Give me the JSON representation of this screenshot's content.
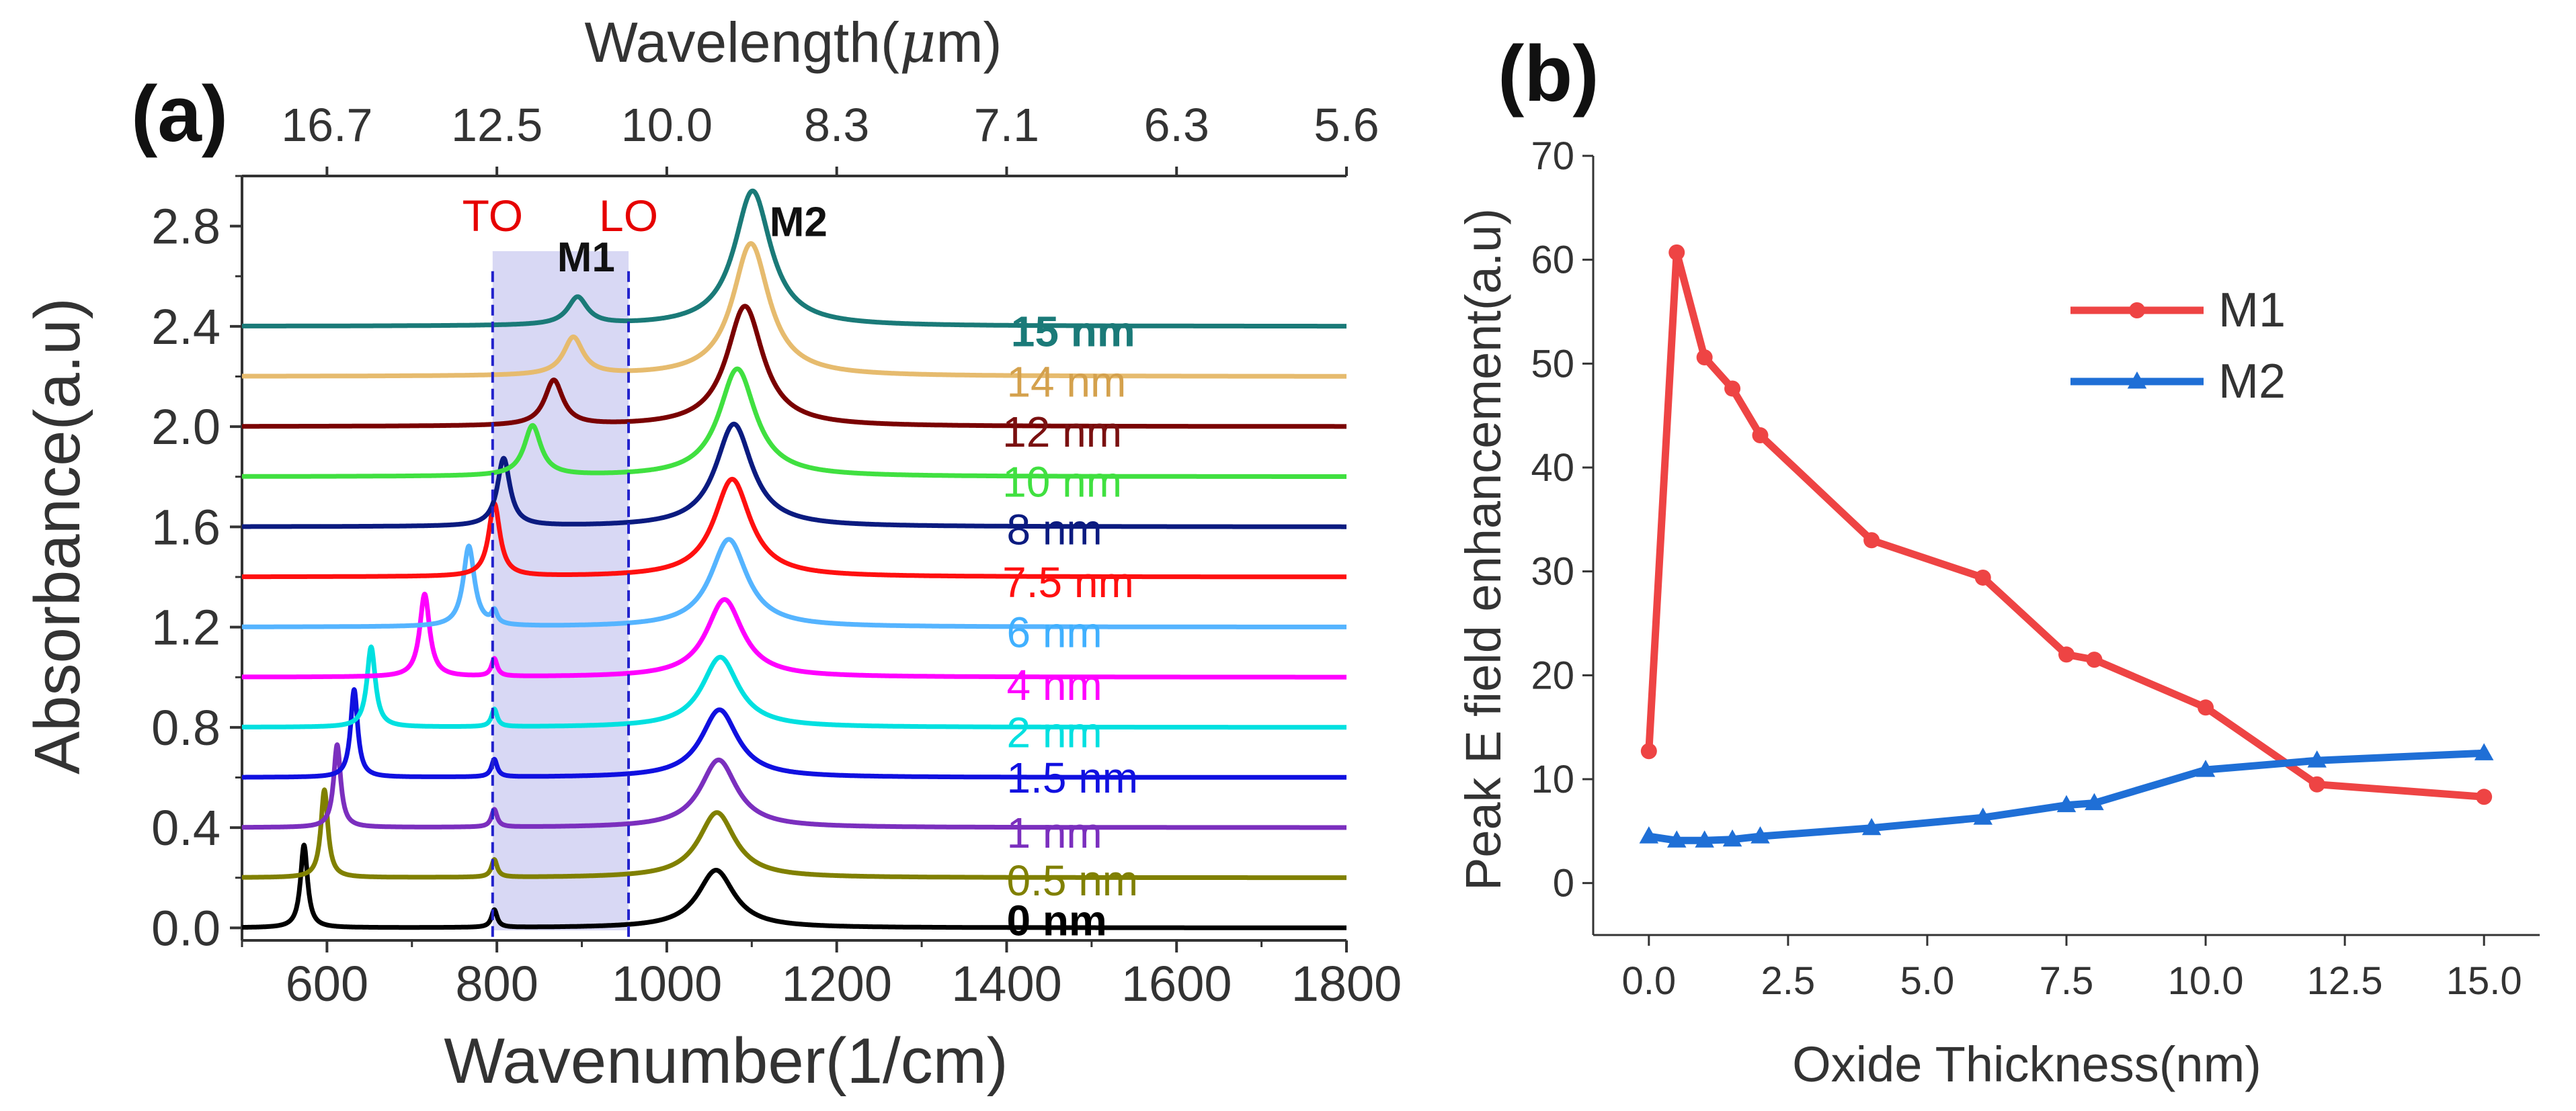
{
  "figure_style": {
    "axis_color": "#333333",
    "text_color": "#333333"
  },
  "chart_data": [
    {
      "panel_label": "(a)",
      "type": "line",
      "xlabel": "Wavenumber(1/cm)",
      "ylabel": "Absorbance(a.u)",
      "xlim": [
        500,
        1800
      ],
      "ylim": [
        -0.05,
        3.0
      ],
      "xticks": [
        600,
        800,
        1000,
        1200,
        1400,
        1600,
        1800
      ],
      "xtick_labels": [
        "600",
        "800",
        "1000",
        "1200",
        "1400",
        "1600",
        "1800"
      ],
      "yticks": [
        0.0,
        0.4,
        0.8,
        1.2,
        1.6,
        2.0,
        2.4,
        2.8
      ],
      "ytick_labels": [
        "0.0",
        "0.4",
        "0.8",
        "1.2",
        "1.6",
        "2.0",
        "2.4",
        "2.8"
      ],
      "top_axis": {
        "label_prefix": "Wavelength(",
        "label_symbol": "μ",
        "label_suffix": "m)",
        "ticks_wavenumber": [
          600,
          800,
          1000,
          1200,
          1400,
          1600,
          1800
        ],
        "tick_labels": [
          "16.7",
          "12.5",
          "10.0",
          "8.3",
          "7.1",
          "6.3",
          "5.6"
        ]
      },
      "shaded_band": {
        "x": [
          795,
          955
        ],
        "color": "#c8c8f0"
      },
      "vlines": [
        {
          "x": 795,
          "label": "TO",
          "color": "#2222cc",
          "label_color": "#e60000"
        },
        {
          "x": 955,
          "label": "LO",
          "color": "#2222cc",
          "label_color": "#e60000"
        }
      ],
      "annotations": [
        {
          "text": "M1",
          "x": 905,
          "y": 2.62
        },
        {
          "text": "M2",
          "x": 1155,
          "y": 2.76
        }
      ],
      "series": [
        {
          "name": "0 nm",
          "color": "#000000",
          "offset": 0.0,
          "m1_x": 573,
          "m1_h": 0.33,
          "m1_w": 5,
          "m2_x": 1058,
          "m2_h": 0.23,
          "m2_w": 26,
          "to_h": 0.07
        },
        {
          "name": "0.5 nm",
          "color": "#808000",
          "offset": 0.2,
          "m1_x": 597,
          "m1_h": 0.35,
          "m1_w": 5,
          "m2_x": 1059,
          "m2_h": 0.26,
          "m2_w": 26,
          "to_h": 0.07
        },
        {
          "name": "1 nm",
          "color": "#7b2fbe",
          "offset": 0.4,
          "m1_x": 612,
          "m1_h": 0.33,
          "m1_w": 5,
          "m2_x": 1061,
          "m2_h": 0.27,
          "m2_w": 26,
          "to_h": 0.07
        },
        {
          "name": "1.5 nm",
          "color": "#1010e0",
          "offset": 0.6,
          "m1_x": 632,
          "m1_h": 0.35,
          "m1_w": 5,
          "m2_x": 1062,
          "m2_h": 0.27,
          "m2_w": 26,
          "to_h": 0.07
        },
        {
          "name": "2 nm",
          "color": "#00e0e0",
          "offset": 0.8,
          "m1_x": 652,
          "m1_h": 0.32,
          "m1_w": 6,
          "m2_x": 1063,
          "m2_h": 0.28,
          "m2_w": 26,
          "to_h": 0.07
        },
        {
          "name": "4 nm",
          "color": "#ff00ff",
          "offset": 1.0,
          "m1_x": 715,
          "m1_h": 0.33,
          "m1_w": 7,
          "m2_x": 1068,
          "m2_h": 0.31,
          "m2_w": 26,
          "to_h": 0.07
        },
        {
          "name": "6 nm",
          "color": "#55b4ff",
          "offset": 1.2,
          "m1_x": 767,
          "m1_h": 0.32,
          "m1_w": 8,
          "m2_x": 1073,
          "m2_h": 0.35,
          "m2_w": 26,
          "to_h": 0.05
        },
        {
          "name": "7.5 nm",
          "color": "#ff1010",
          "offset": 1.4,
          "m1_x": 797,
          "m1_h": 0.29,
          "m1_w": 8,
          "m2_x": 1077,
          "m2_h": 0.39,
          "m2_w": 26,
          "to_h": 0.0
        },
        {
          "name": "8 nm",
          "color": "#0b1b80",
          "offset": 1.6,
          "m1_x": 808,
          "m1_h": 0.27,
          "m1_w": 9,
          "m2_x": 1079,
          "m2_h": 0.41,
          "m2_w": 26,
          "to_h": 0.0
        },
        {
          "name": "10 nm",
          "color": "#40e040",
          "offset": 1.8,
          "m1_x": 842,
          "m1_h": 0.2,
          "m1_w": 12,
          "m2_x": 1083,
          "m2_h": 0.43,
          "m2_w": 26,
          "to_h": 0.0
        },
        {
          "name": "12 nm",
          "color": "#7a0000",
          "offset": 2.0,
          "m1_x": 867,
          "m1_h": 0.18,
          "m1_w": 13,
          "m2_x": 1092,
          "m2_h": 0.48,
          "m2_w": 26,
          "to_h": 0.0
        },
        {
          "name": "14 nm",
          "color": "#e6bb6e",
          "offset": 2.2,
          "m1_x": 890,
          "m1_h": 0.15,
          "m1_w": 14,
          "m2_x": 1099,
          "m2_h": 0.53,
          "m2_w": 26,
          "to_h": 0.0
        },
        {
          "name": "15 nm",
          "color": "#1a7a78",
          "offset": 2.4,
          "m1_x": 895,
          "m1_h": 0.11,
          "m1_w": 14,
          "m2_x": 1101,
          "m2_h": 0.54,
          "m2_w": 26,
          "to_h": 0.0
        }
      ],
      "legend_labels": [
        {
          "text": "15 nm",
          "color": "#1a7a78",
          "bold": true,
          "x": 1405,
          "y": 2.32
        },
        {
          "text": "14 nm",
          "color": "#d4a14d",
          "bold": false,
          "x": 1400,
          "y": 2.12
        },
        {
          "text": "12 nm",
          "color": "#7a1010",
          "bold": false,
          "x": 1395,
          "y": 1.92
        },
        {
          "text": "10 nm",
          "color": "#40e040",
          "bold": false,
          "x": 1395,
          "y": 1.72
        },
        {
          "text": "8 nm",
          "color": "#0b1b80",
          "bold": false,
          "x": 1400,
          "y": 1.53
        },
        {
          "text": "7.5 nm",
          "color": "#ff1010",
          "bold": false,
          "x": 1395,
          "y": 1.32
        },
        {
          "text": "6 nm",
          "color": "#40b0ff",
          "bold": false,
          "x": 1400,
          "y": 1.12
        },
        {
          "text": "4 nm",
          "color": "#ff00ff",
          "bold": false,
          "x": 1400,
          "y": 0.91
        },
        {
          "text": "2 nm",
          "color": "#00e0e0",
          "bold": false,
          "x": 1400,
          "y": 0.72
        },
        {
          "text": "1.5 nm",
          "color": "#1010e0",
          "bold": false,
          "x": 1400,
          "y": 0.54
        },
        {
          "text": "1 nm",
          "color": "#7b2fbe",
          "bold": false,
          "x": 1400,
          "y": 0.32
        },
        {
          "text": "0.5 nm",
          "color": "#808000",
          "bold": false,
          "x": 1400,
          "y": 0.13
        },
        {
          "text": "0 nm",
          "color": "#000000",
          "bold": true,
          "x": 1400,
          "y": -0.03
        }
      ]
    },
    {
      "panel_label": "(b)",
      "type": "line",
      "xlabel": "Oxide Thickness(nm)",
      "ylabel": "Peak E field enhancement(a.u)",
      "xlim": [
        -1,
        16
      ],
      "ylim": [
        -5,
        70
      ],
      "xticks": [
        0,
        2.5,
        5,
        7.5,
        10,
        12.5,
        15
      ],
      "xtick_labels": [
        "0.0",
        "2.5",
        "5.0",
        "7.5",
        "10.0",
        "12.5",
        "15.0"
      ],
      "yticks": [
        0,
        10,
        20,
        30,
        40,
        50,
        60,
        70
      ],
      "ytick_labels": [
        "0",
        "10",
        "20",
        "30",
        "40",
        "50",
        "60",
        "70"
      ],
      "series": [
        {
          "name": "M1",
          "color": "#ee4444",
          "marker": "circle",
          "x": [
            0,
            0.5,
            1,
            1.5,
            2,
            4,
            6,
            7.5,
            8,
            10,
            12,
            15
          ],
          "y": [
            12.7,
            60.7,
            50.6,
            47.6,
            43.1,
            33.0,
            29.4,
            22.0,
            21.5,
            16.9,
            9.5,
            8.3
          ]
        },
        {
          "name": "M2",
          "color": "#1f6fd6",
          "marker": "triangle",
          "x": [
            0,
            0.5,
            1,
            1.5,
            2,
            4,
            6,
            7.5,
            8,
            10,
            12,
            15
          ],
          "y": [
            4.5,
            4.1,
            4.1,
            4.2,
            4.5,
            5.3,
            6.3,
            7.5,
            7.7,
            10.9,
            11.8,
            12.5
          ]
        }
      ]
    }
  ]
}
